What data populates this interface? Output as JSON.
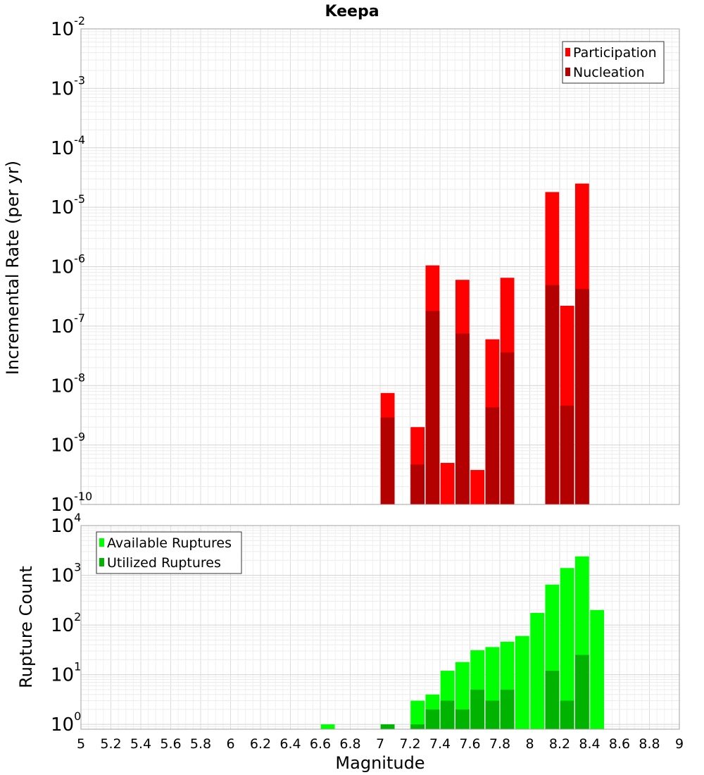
{
  "chart_data": [
    {
      "type": "bar",
      "title": "Keepa",
      "xlabel": "",
      "ylabel": "Incremental Rate (per yr)",
      "y_scale": "log",
      "ylim": [
        1e-10,
        0.01
      ],
      "xlim": [
        5,
        9
      ],
      "grid": true,
      "legend_position": "top-right",
      "series": [
        {
          "name": "Participation",
          "color": "#ff0000",
          "x": [
            7.05,
            7.25,
            7.35,
            7.45,
            7.55,
            7.65,
            7.75,
            7.85,
            8.15,
            8.25,
            8.35
          ],
          "values": [
            7.5e-09,
            2e-09,
            1.05e-06,
            5e-10,
            6e-07,
            3.8e-10,
            6e-08,
            6.5e-07,
            1.8e-05,
            2.2e-07,
            2.5e-05
          ]
        },
        {
          "name": "Nucleation",
          "color": "#b30000",
          "x": [
            7.05,
            7.25,
            7.35,
            7.55,
            7.75,
            7.85,
            8.15,
            8.25,
            8.35
          ],
          "values": [
            2.9e-09,
            4.7e-10,
            1.8e-07,
            7.5e-08,
            4.3e-09,
            3.6e-08,
            4.9e-07,
            4.6e-09,
            4.2e-07
          ]
        }
      ]
    },
    {
      "type": "bar",
      "title": "",
      "xlabel": "Magnitude",
      "ylabel": "Rupture Count",
      "y_scale": "log",
      "ylim": [
        0.8,
        10000
      ],
      "xlim": [
        5,
        9
      ],
      "grid": true,
      "legend_position": "top-left",
      "x_ticks": [
        "5",
        "5.2",
        "5.4",
        "5.6",
        "5.8",
        "6",
        "6.2",
        "6.4",
        "6.6",
        "6.8",
        "7",
        "7.2",
        "7.4",
        "7.6",
        "7.8",
        "8",
        "8.2",
        "8.4",
        "8.6",
        "8.8",
        "9"
      ],
      "series": [
        {
          "name": "Available Ruptures",
          "color": "#00ff00",
          "x": [
            6.65,
            7.05,
            7.25,
            7.35,
            7.45,
            7.55,
            7.65,
            7.75,
            7.85,
            7.95,
            8.05,
            8.15,
            8.25,
            8.35,
            8.45
          ],
          "values": [
            1,
            1,
            3,
            4,
            12,
            18,
            31,
            36,
            46,
            60,
            175,
            650,
            1400,
            2400,
            200
          ]
        },
        {
          "name": "Utilized Ruptures",
          "color": "#00b300",
          "x": [
            7.05,
            7.25,
            7.35,
            7.45,
            7.55,
            7.65,
            7.75,
            7.85,
            8.15,
            8.25,
            8.35
          ],
          "values": [
            1,
            1,
            2,
            3,
            2,
            5,
            3,
            5,
            12,
            3,
            25
          ]
        }
      ]
    }
  ]
}
